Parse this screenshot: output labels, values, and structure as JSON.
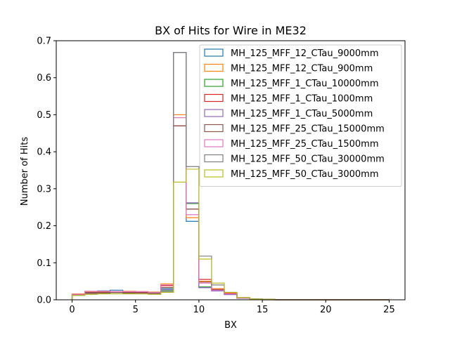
{
  "chart_data": {
    "type": "step-histogram",
    "title": "BX of Hits for Wire in ME32",
    "xlabel": "BX",
    "ylabel": "Number of Hits",
    "xlim": [
      0,
      25
    ],
    "ylim": [
      0,
      0.7
    ],
    "xticks": [
      0,
      5,
      10,
      15,
      20,
      25
    ],
    "yticks": [
      0.0,
      0.1,
      0.2,
      0.3,
      0.4,
      0.5,
      0.6,
      0.7
    ],
    "ytick_labels": [
      "0.0",
      "0.1",
      "0.2",
      "0.3",
      "0.4",
      "0.5",
      "0.6",
      "0.7"
    ],
    "grid": false,
    "legend_position": "upper-right",
    "bin_edges": [
      0,
      1,
      2,
      3,
      4,
      5,
      6,
      7,
      8,
      9,
      10,
      11,
      12,
      13,
      14,
      15,
      16,
      17,
      18,
      19,
      20,
      21,
      22,
      23,
      24,
      25
    ],
    "series": [
      {
        "name": "MH_125_MFF_12_CTau_9000mm",
        "color": "#1f77b4",
        "values": [
          0.015,
          0.02,
          0.024,
          0.026,
          0.022,
          0.021,
          0.019,
          0.03,
          0.668,
          0.212,
          0.033,
          0.025,
          0.017,
          0.005,
          0.002,
          0.001,
          0,
          0,
          0,
          0,
          0,
          0,
          0,
          0,
          0
        ]
      },
      {
        "name": "MH_125_MFF_12_CTau_900mm",
        "color": "#ff7f0e",
        "values": [
          0.016,
          0.022,
          0.022,
          0.022,
          0.023,
          0.022,
          0.021,
          0.043,
          0.5,
          0.222,
          0.05,
          0.03,
          0.018,
          0.006,
          0.002,
          0.001,
          0,
          0,
          0,
          0,
          0,
          0,
          0,
          0,
          0
        ]
      },
      {
        "name": "MH_125_MFF_1_CTau_10000mm",
        "color": "#2ca02c",
        "values": [
          0.012,
          0.016,
          0.018,
          0.02,
          0.018,
          0.017,
          0.016,
          0.025,
          0.668,
          0.26,
          0.035,
          0.025,
          0.015,
          0.004,
          0.001,
          0,
          0,
          0,
          0,
          0,
          0,
          0,
          0,
          0,
          0
        ]
      },
      {
        "name": "MH_125_MFF_1_CTau_1000mm",
        "color": "#d62728",
        "values": [
          0.014,
          0.019,
          0.02,
          0.021,
          0.02,
          0.02,
          0.018,
          0.038,
          0.47,
          0.245,
          0.055,
          0.028,
          0.017,
          0.005,
          0.002,
          0.001,
          0,
          0,
          0,
          0,
          0,
          0,
          0,
          0,
          0
        ]
      },
      {
        "name": "MH_125_MFF_1_CTau_5000mm",
        "color": "#9467bd",
        "values": [
          0.013,
          0.017,
          0.019,
          0.02,
          0.019,
          0.018,
          0.017,
          0.027,
          0.668,
          0.262,
          0.033,
          0.024,
          0.014,
          0.004,
          0.001,
          0,
          0,
          0,
          0,
          0,
          0,
          0,
          0,
          0,
          0
        ]
      },
      {
        "name": "MH_125_MFF_25_CTau_15000mm",
        "color": "#8c564b",
        "values": [
          0.014,
          0.018,
          0.019,
          0.02,
          0.019,
          0.019,
          0.018,
          0.033,
          0.47,
          0.245,
          0.048,
          0.027,
          0.016,
          0.005,
          0.002,
          0.001,
          0,
          0,
          0,
          0,
          0,
          0,
          0,
          0,
          0
        ]
      },
      {
        "name": "MH_125_MFF_25_CTau_1500mm",
        "color": "#e377c2",
        "values": [
          0.015,
          0.023,
          0.023,
          0.022,
          0.022,
          0.022,
          0.02,
          0.04,
          0.492,
          0.23,
          0.045,
          0.026,
          0.016,
          0.005,
          0.002,
          0.001,
          0,
          0,
          0,
          0,
          0,
          0,
          0,
          0,
          0
        ]
      },
      {
        "name": "MH_125_MFF_50_CTau_30000mm",
        "color": "#7f7f7f",
        "values": [
          0.012,
          0.015,
          0.016,
          0.017,
          0.016,
          0.016,
          0.015,
          0.022,
          0.668,
          0.36,
          0.118,
          0.04,
          0.02,
          0.006,
          0.002,
          0.001,
          0,
          0,
          0,
          0,
          0,
          0,
          0,
          0,
          0
        ]
      },
      {
        "name": "MH_125_MFF_50_CTau_3000mm",
        "color": "#bcbd22",
        "values": [
          0.012,
          0.015,
          0.016,
          0.016,
          0.016,
          0.016,
          0.015,
          0.02,
          0.318,
          0.353,
          0.11,
          0.045,
          0.02,
          0.006,
          0.002,
          0.001,
          0,
          0,
          0,
          0,
          0,
          0,
          0,
          0,
          0
        ]
      }
    ]
  }
}
